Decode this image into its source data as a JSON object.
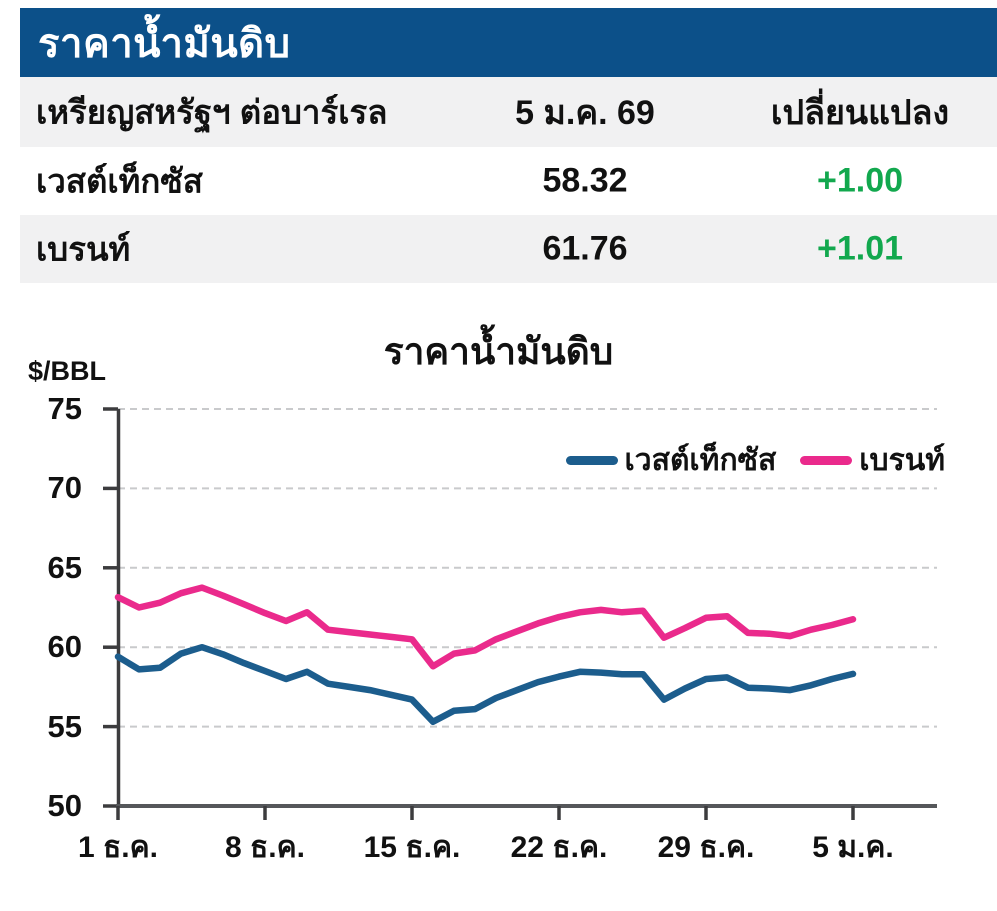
{
  "header": {
    "title": "ราคาน้ำมันดิบ"
  },
  "colors": {
    "banner_blue": "#0C5089",
    "change_green": "#12A84E"
  },
  "table": {
    "columns": [
      "เหรียญสหรัฐฯ ต่อบาร์เรล",
      "5 ม.ค. 69",
      "เปลี่ยนแปลง"
    ],
    "rows": [
      {
        "name": "เวสต์เท็กซัส",
        "price": "58.32",
        "change": "+1.00"
      },
      {
        "name": "เบรนท์",
        "price": "61.76",
        "change": "+1.01"
      }
    ]
  },
  "chart_data": {
    "type": "line",
    "title": "ราคาน้ำมันดิบ",
    "unit_label": "$/BBL",
    "xlabel": "",
    "ylabel": "$/BBL",
    "ylim": [
      50,
      75
    ],
    "grid": "horizontal-dashed",
    "legend_position": "top-right",
    "yticks": [
      50,
      55,
      60,
      65,
      70,
      75
    ],
    "ytick_labels": [
      "50",
      "55",
      "60",
      "65",
      "70",
      "75"
    ],
    "xtick_labels": [
      "1 ธ.ค.",
      "8 ธ.ค.",
      "15 ธ.ค.",
      "22 ธ.ค.",
      "29 ธ.ค.",
      "5 ม.ค."
    ],
    "xtick_indices": [
      0,
      7,
      14,
      21,
      28,
      35
    ],
    "series": [
      {
        "name": "เวสต์เท็กซัส",
        "color": "#1C5D8D",
        "values": [
          59.4,
          58.6,
          58.7,
          59.6,
          60.0,
          59.55,
          59.0,
          58.5,
          58.0,
          58.45,
          57.7,
          57.5,
          57.3,
          57.0,
          56.7,
          55.3,
          56.0,
          56.1,
          56.8,
          57.3,
          57.8,
          58.15,
          58.45,
          58.4,
          58.3,
          58.3,
          56.7,
          57.4,
          58.0,
          58.1,
          57.45,
          57.4,
          57.3,
          57.6,
          58.0,
          58.32
        ]
      },
      {
        "name": "เบรนท์",
        "color": "#EA2A8C",
        "values": [
          63.15,
          62.5,
          62.8,
          63.4,
          63.75,
          63.25,
          62.7,
          62.15,
          61.65,
          62.2,
          61.1,
          60.95,
          60.8,
          60.65,
          60.5,
          58.8,
          59.6,
          59.8,
          60.5,
          61.0,
          61.5,
          61.9,
          62.2,
          62.35,
          62.2,
          62.3,
          60.6,
          61.2,
          61.85,
          61.95,
          60.9,
          60.85,
          60.7,
          61.1,
          61.4,
          61.76
        ]
      }
    ]
  }
}
